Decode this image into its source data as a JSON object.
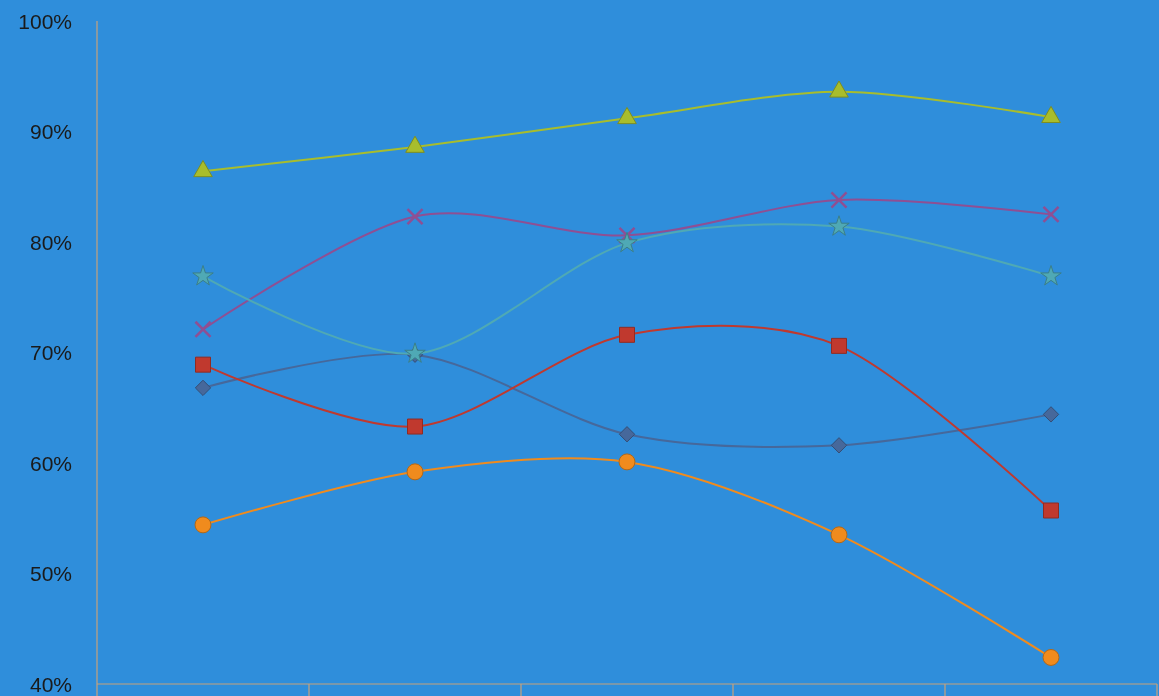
{
  "chart_data": {
    "type": "line",
    "categories": [
      null,
      null,
      null,
      null,
      null
    ],
    "series": [
      {
        "color": "#46689b",
        "marker": "diamond",
        "values": [
          66.8,
          69.8,
          62.6,
          61.6,
          64.4
        ]
      },
      {
        "color": "#c0392e",
        "marker": "square",
        "values": [
          68.9,
          63.3,
          71.6,
          70.6,
          55.7
        ]
      },
      {
        "color": "#a8bd2c",
        "marker": "triangle",
        "values": [
          86.4,
          88.6,
          91.2,
          93.6,
          91.3
        ]
      },
      {
        "color": "#8f4f93",
        "marker": "cross",
        "values": [
          72.1,
          82.3,
          80.6,
          83.8,
          82.5
        ]
      },
      {
        "color": "#4fa9b5",
        "marker": "star",
        "values": [
          76.9,
          69.9,
          79.9,
          81.4,
          76.9
        ]
      },
      {
        "color": "#f08b1d",
        "marker": "circle",
        "values": [
          54.4,
          59.2,
          60.1,
          53.5,
          42.4
        ]
      }
    ],
    "ylim": [
      40,
      100
    ],
    "yticks": [
      {
        "value": 40,
        "label": "40%"
      },
      {
        "value": 50,
        "label": "50%"
      },
      {
        "value": 60,
        "label": "60%"
      },
      {
        "value": 70,
        "label": "70%"
      },
      {
        "value": 80,
        "label": "80%"
      },
      {
        "value": 90,
        "label": "90%"
      },
      {
        "value": 100,
        "label": "100%"
      }
    ],
    "tick_labels": "y",
    "line_style": "solid"
  }
}
